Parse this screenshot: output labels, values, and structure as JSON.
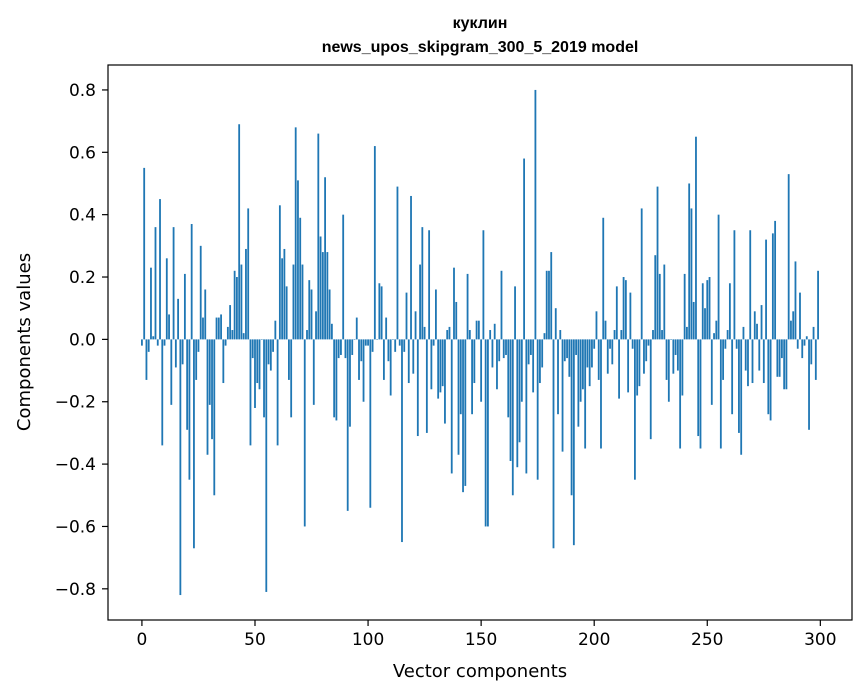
{
  "chart_data": {
    "type": "bar",
    "title_line1": "куклин",
    "title_line2": "news_upos_skipgram_300_5_2019 model",
    "xlabel": "Vector components",
    "ylabel": "Components values",
    "xlim": [
      -15,
      314
    ],
    "ylim": [
      -0.9,
      0.88
    ],
    "xticks": [
      0,
      50,
      100,
      150,
      200,
      250,
      300
    ],
    "yticks": [
      -0.8,
      -0.6,
      -0.4,
      -0.2,
      0.0,
      0.2,
      0.4,
      0.6,
      0.8
    ],
    "bar_color": "#1f77b4",
    "grid": false,
    "legend": "none",
    "values": [
      -0.02,
      0.55,
      -0.13,
      -0.04,
      0.23,
      0.01,
      0.36,
      -0.02,
      0.45,
      -0.34,
      -0.02,
      0.26,
      0.08,
      -0.21,
      0.36,
      -0.09,
      0.13,
      -0.82,
      -0.08,
      0.21,
      -0.29,
      -0.45,
      0.37,
      -0.67,
      -0.13,
      -0.04,
      0.3,
      0.07,
      0.16,
      -0.37,
      -0.21,
      -0.32,
      -0.5,
      0.07,
      0.07,
      0.08,
      -0.14,
      -0.02,
      0.04,
      0.11,
      0.03,
      0.22,
      0.2,
      0.69,
      0.24,
      0.02,
      0.29,
      0.42,
      -0.34,
      -0.06,
      -0.22,
      -0.14,
      -0.16,
      0.0,
      -0.25,
      -0.81,
      -0.08,
      -0.1,
      -0.04,
      0.06,
      -0.34,
      0.43,
      0.26,
      0.29,
      0.17,
      -0.13,
      -0.25,
      0.24,
      0.68,
      0.51,
      0.39,
      0.24,
      -0.6,
      0.03,
      0.19,
      0.16,
      -0.21,
      0.09,
      0.66,
      0.33,
      0.28,
      0.52,
      0.28,
      0.16,
      0.05,
      -0.25,
      -0.26,
      -0.06,
      -0.05,
      0.4,
      -0.06,
      -0.55,
      -0.28,
      -0.05,
      0.0,
      0.07,
      -0.13,
      -0.07,
      -0.2,
      -0.02,
      -0.02,
      -0.54,
      -0.04,
      0.62,
      0.0,
      0.18,
      0.17,
      -0.13,
      0.07,
      -0.07,
      -0.18,
      0.0,
      -0.04,
      0.49,
      -0.02,
      -0.65,
      -0.04,
      0.15,
      -0.14,
      0.46,
      -0.11,
      0.09,
      -0.31,
      0.24,
      0.36,
      0.04,
      -0.3,
      0.35,
      -0.16,
      -0.02,
      0.16,
      -0.19,
      -0.17,
      -0.15,
      -0.27,
      0.03,
      0.04,
      -0.43,
      0.23,
      0.12,
      -0.37,
      -0.24,
      -0.49,
      -0.47,
      0.21,
      0.03,
      -0.24,
      -0.14,
      0.06,
      0.06,
      -0.2,
      0.35,
      -0.6,
      -0.6,
      0.03,
      -0.09,
      0.05,
      -0.16,
      -0.07,
      0.22,
      -0.06,
      -0.05,
      -0.25,
      -0.39,
      -0.5,
      0.17,
      -0.41,
      -0.33,
      -0.2,
      0.58,
      -0.43,
      -0.08,
      -0.05,
      -0.17,
      0.8,
      -0.45,
      -0.14,
      -0.09,
      0.02,
      0.22,
      0.22,
      0.28,
      -0.67,
      0.1,
      -0.24,
      0.03,
      -0.36,
      -0.07,
      -0.06,
      -0.12,
      -0.5,
      -0.66,
      -0.05,
      -0.28,
      -0.2,
      -0.16,
      -0.35,
      -0.09,
      -0.15,
      -0.09,
      -0.03,
      0.09,
      -0.13,
      -0.35,
      0.39,
      0.06,
      -0.11,
      -0.03,
      -0.08,
      0.03,
      0.17,
      -0.19,
      0.03,
      0.2,
      0.19,
      -0.17,
      0.15,
      -0.03,
      -0.45,
      -0.18,
      -0.15,
      0.42,
      -0.11,
      -0.07,
      -0.02,
      -0.32,
      0.03,
      0.27,
      0.49,
      0.21,
      0.03,
      0.24,
      -0.13,
      -0.2,
      0.0,
      -0.11,
      -0.05,
      -0.1,
      -0.35,
      -0.18,
      0.21,
      0.04,
      0.5,
      0.42,
      0.12,
      0.65,
      -0.31,
      -0.35,
      0.18,
      0.1,
      0.19,
      0.2,
      -0.21,
      0.02,
      0.06,
      0.4,
      -0.35,
      -0.13,
      -0.03,
      0.03,
      0.18,
      -0.24,
      0.35,
      -0.03,
      -0.3,
      -0.37,
      0.04,
      -0.1,
      -0.15,
      0.35,
      -0.14,
      0.09,
      0.05,
      -0.1,
      0.11,
      -0.14,
      0.32,
      -0.24,
      -0.26,
      0.34,
      0.38,
      -0.12,
      -0.12,
      -0.06,
      -0.16,
      -0.16,
      0.53,
      0.06,
      0.09,
      0.25,
      -0.03,
      0.15,
      -0.06,
      -0.02,
      0.01,
      -0.29,
      -0.08,
      0.04,
      -0.13,
      0.22
    ]
  }
}
